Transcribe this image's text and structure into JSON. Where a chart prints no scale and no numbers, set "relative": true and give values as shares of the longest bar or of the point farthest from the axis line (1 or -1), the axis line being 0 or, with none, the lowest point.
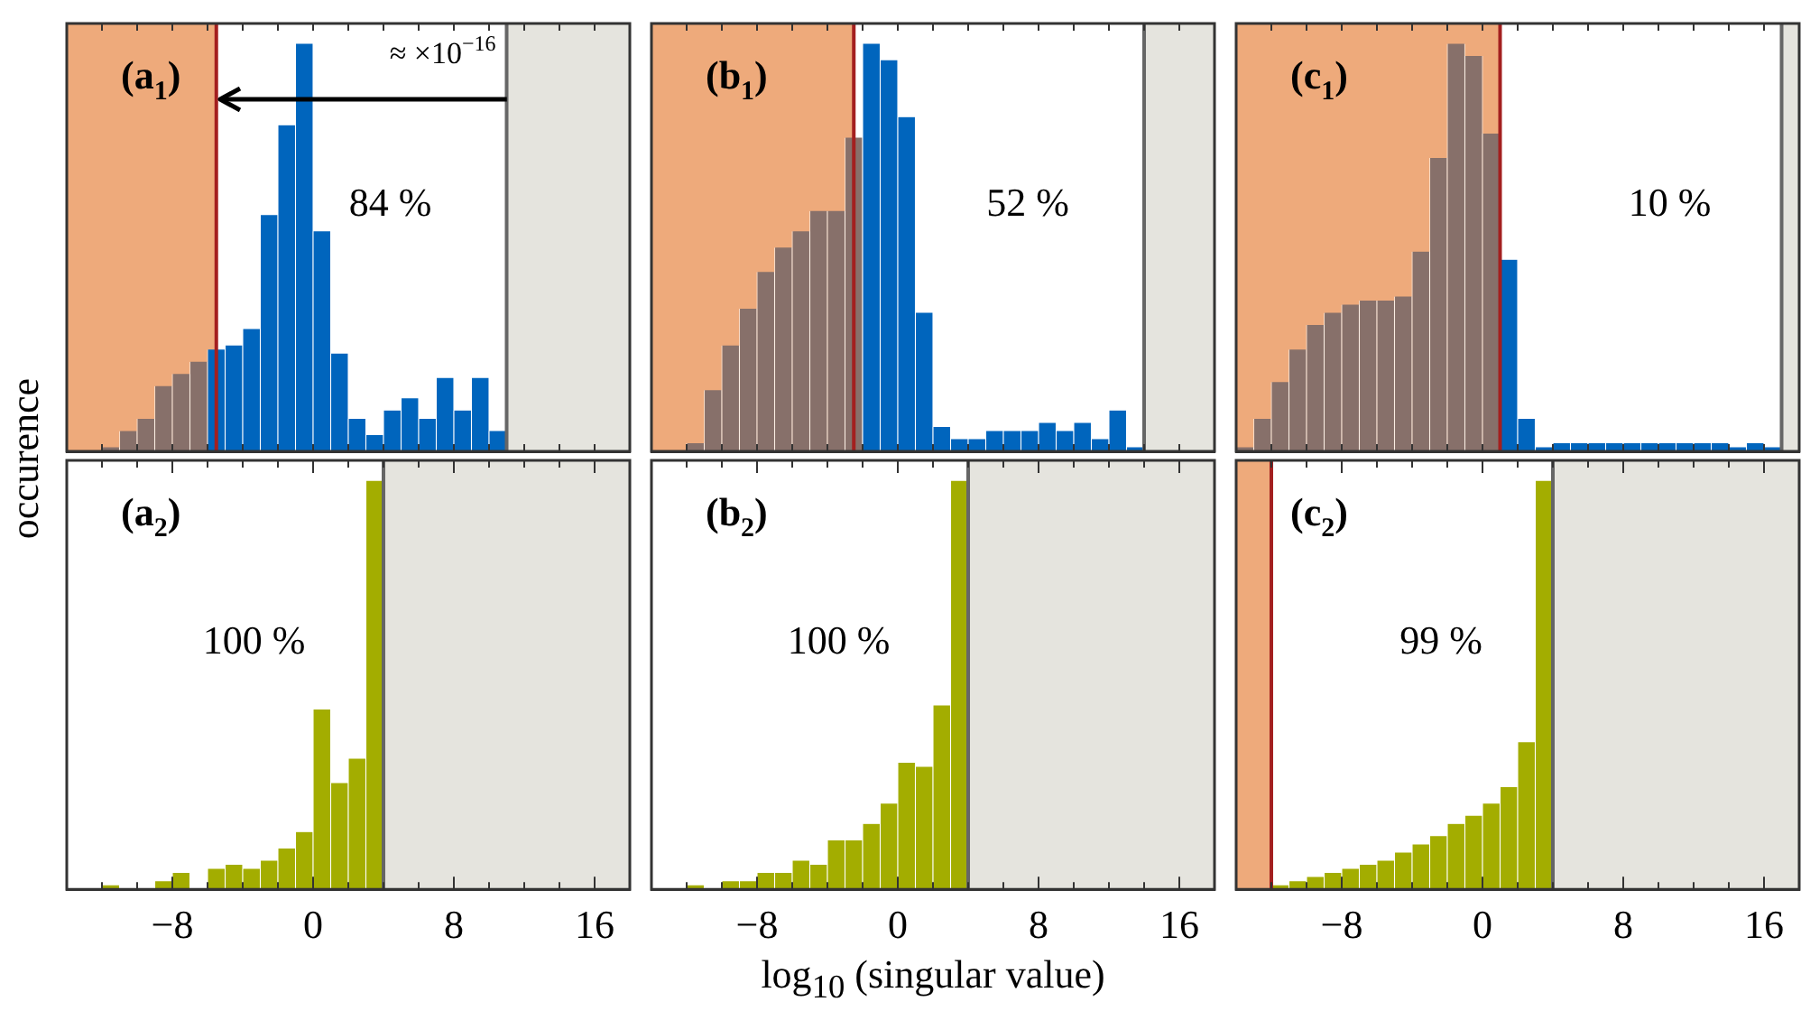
{
  "chart_data": [
    {
      "type": "bar",
      "title": "(a$_{1}$)",
      "ylabel": "occurence",
      "relative": true,
      "tick_labels": false,
      "xlim": [
        -14,
        18
      ],
      "xticks": [
        {
          "value": -12,
          "label": null
        },
        {
          "value": -10,
          "label": null
        },
        {
          "value": -8,
          "label": null
        },
        {
          "value": -6,
          "label": null
        },
        {
          "value": -4,
          "label": null
        },
        {
          "value": -2,
          "label": null
        },
        {
          "value": 0,
          "label": null
        },
        {
          "value": 2,
          "label": null
        },
        {
          "value": 4,
          "label": null
        },
        {
          "value": 6,
          "label": null
        },
        {
          "value": 8,
          "label": null
        },
        {
          "value": 10,
          "label": null
        },
        {
          "value": 12,
          "label": null
        },
        {
          "value": 14,
          "label": null
        },
        {
          "value": 16,
          "label": null
        }
      ],
      "x": [
        -11.5,
        -10.5,
        -9.5,
        -8.5,
        -7.5,
        -6.5,
        -5.5,
        -4.5,
        -3.5,
        -2.5,
        -1.5,
        -0.5,
        0.5,
        1.5,
        2.5,
        3.5,
        4.5,
        5.5,
        6.5,
        7.5,
        8.5,
        9.5,
        10.5
      ],
      "values": [
        0.01,
        0.05,
        0.08,
        0.16,
        0.19,
        0.22,
        0.25,
        0.26,
        0.3,
        0.58,
        0.8,
        1,
        0.54,
        0.24,
        0.08,
        0.04,
        0.1,
        0.13,
        0.08,
        0.18,
        0.1,
        0.18,
        0.05
      ],
      "colors": [
        "#87706a",
        "#87706a",
        "#87706a",
        "#87706a",
        "#87706a",
        "#87706a",
        "#0065bd",
        "#0065bd",
        "#0065bd",
        "#0065bd",
        "#0065bd",
        "#0065bd",
        "#0065bd",
        "#0065bd",
        "#0065bd",
        "#0065bd",
        "#0065bd",
        "#0065bd",
        "#0065bd",
        "#0065bd",
        "#0065bd",
        "#0065bd",
        "#0065bd"
      ],
      "bands": [
        {
          "axis": "x",
          "from": -14,
          "to": -5.5,
          "color": "#eeaa7b"
        },
        {
          "axis": "x",
          "from": 11,
          "to": 18,
          "color": "#e5e4de"
        }
      ],
      "ref_lines": [
        {
          "axis": "x",
          "value": -5.5,
          "color": "#a31f1f"
        },
        {
          "axis": "x",
          "value": 11,
          "color": "#666666"
        }
      ],
      "annotations": [
        "≈ ×10$^{−16}$",
        "84 %"
      ]
    },
    {
      "type": "bar",
      "title": "(b$_{1}$)",
      "relative": true,
      "tick_labels": false,
      "xlim": [
        -14,
        18
      ],
      "xticks": [
        {
          "value": -12,
          "label": null
        },
        {
          "value": -10,
          "label": null
        },
        {
          "value": -8,
          "label": null
        },
        {
          "value": -6,
          "label": null
        },
        {
          "value": -4,
          "label": null
        },
        {
          "value": -2,
          "label": null
        },
        {
          "value": 0,
          "label": null
        },
        {
          "value": 2,
          "label": null
        },
        {
          "value": 4,
          "label": null
        },
        {
          "value": 6,
          "label": null
        },
        {
          "value": 8,
          "label": null
        },
        {
          "value": 10,
          "label": null
        },
        {
          "value": 12,
          "label": null
        },
        {
          "value": 14,
          "label": null
        },
        {
          "value": 16,
          "label": null
        }
      ],
      "x": [
        -11.5,
        -10.5,
        -9.5,
        -8.5,
        -7.5,
        -6.5,
        -5.5,
        -4.5,
        -3.5,
        -2.5,
        -1.5,
        -0.5,
        0.5,
        1.5,
        2.5,
        3.5,
        4.5,
        5.5,
        6.5,
        7.5,
        8.5,
        9.5,
        10.5,
        11.5,
        12.5,
        13.5
      ],
      "values": [
        0.02,
        0.15,
        0.26,
        0.35,
        0.44,
        0.5,
        0.54,
        0.59,
        0.59,
        0.77,
        1,
        0.96,
        0.82,
        0.34,
        0.06,
        0.03,
        0.03,
        0.05,
        0.05,
        0.05,
        0.07,
        0.05,
        0.07,
        0.03,
        0.1,
        0.01
      ],
      "colors": [
        "#87706a",
        "#87706a",
        "#87706a",
        "#87706a",
        "#87706a",
        "#87706a",
        "#87706a",
        "#87706a",
        "#87706a",
        "#87706a",
        "#0065bd",
        "#0065bd",
        "#0065bd",
        "#0065bd",
        "#0065bd",
        "#0065bd",
        "#0065bd",
        "#0065bd",
        "#0065bd",
        "#0065bd",
        "#0065bd",
        "#0065bd",
        "#0065bd",
        "#0065bd",
        "#0065bd",
        "#0065bd"
      ],
      "bands": [
        {
          "axis": "x",
          "from": -14,
          "to": -2.5,
          "color": "#eeaa7b"
        },
        {
          "axis": "x",
          "from": 14,
          "to": 18,
          "color": "#e5e4de"
        }
      ],
      "ref_lines": [
        {
          "axis": "x",
          "value": -2.5,
          "color": "#a31f1f"
        },
        {
          "axis": "x",
          "value": 14,
          "color": "#666666"
        }
      ],
      "annotations": [
        "52 %"
      ]
    },
    {
      "type": "bar",
      "title": "(c$_{1}$)",
      "relative": true,
      "tick_labels": false,
      "xlim": [
        -14,
        18
      ],
      "xticks": [
        {
          "value": -12,
          "label": null
        },
        {
          "value": -10,
          "label": null
        },
        {
          "value": -8,
          "label": null
        },
        {
          "value": -6,
          "label": null
        },
        {
          "value": -4,
          "label": null
        },
        {
          "value": -2,
          "label": null
        },
        {
          "value": 0,
          "label": null
        },
        {
          "value": 2,
          "label": null
        },
        {
          "value": 4,
          "label": null
        },
        {
          "value": 6,
          "label": null
        },
        {
          "value": 8,
          "label": null
        },
        {
          "value": 10,
          "label": null
        },
        {
          "value": 12,
          "label": null
        },
        {
          "value": 14,
          "label": null
        },
        {
          "value": 16,
          "label": null
        }
      ],
      "x": [
        -13.5,
        -12.5,
        -11.5,
        -10.5,
        -9.5,
        -8.5,
        -7.5,
        -6.5,
        -5.5,
        -4.5,
        -3.5,
        -2.5,
        -1.5,
        -0.5,
        0.5,
        1.5,
        2.5,
        3.5,
        4.5,
        5.5,
        6.5,
        7.5,
        8.5,
        9.5,
        10.5,
        11.5,
        12.5,
        13.5,
        14.5,
        15.5,
        16.5
      ],
      "values": [
        0.01,
        0.08,
        0.17,
        0.25,
        0.31,
        0.34,
        0.36,
        0.37,
        0.37,
        0.38,
        0.49,
        0.72,
        1,
        0.97,
        0.78,
        0.47,
        0.08,
        0.01,
        0.02,
        0.02,
        0.02,
        0.02,
        0.02,
        0.02,
        0.02,
        0.02,
        0.02,
        0.02,
        0.01,
        0.02,
        0.01
      ],
      "colors": [
        "#87706a",
        "#87706a",
        "#87706a",
        "#87706a",
        "#87706a",
        "#87706a",
        "#87706a",
        "#87706a",
        "#87706a",
        "#87706a",
        "#87706a",
        "#87706a",
        "#87706a",
        "#87706a",
        "#87706a",
        "#0065bd",
        "#0065bd",
        "#0065bd",
        "#0065bd",
        "#0065bd",
        "#0065bd",
        "#0065bd",
        "#0065bd",
        "#0065bd",
        "#0065bd",
        "#0065bd",
        "#0065bd",
        "#0065bd",
        "#0065bd",
        "#0065bd",
        "#0065bd"
      ],
      "bands": [
        {
          "axis": "x",
          "from": -14,
          "to": 1,
          "color": "#eeaa7b"
        },
        {
          "axis": "x",
          "from": 17,
          "to": 18,
          "color": "#e5e4de"
        }
      ],
      "ref_lines": [
        {
          "axis": "x",
          "value": 1,
          "color": "#a31f1f"
        },
        {
          "axis": "x",
          "value": 17,
          "color": "#666666"
        }
      ],
      "annotations": [
        "10 %"
      ]
    },
    {
      "type": "bar",
      "title": "(a$_{2}$)",
      "relative": true,
      "tick_labels": "x",
      "xlim": [
        -14,
        18
      ],
      "xticks": [
        {
          "value": -12,
          "label": null
        },
        {
          "value": -10,
          "label": null
        },
        {
          "value": -8,
          "label": "−8"
        },
        {
          "value": -6,
          "label": null
        },
        {
          "value": -4,
          "label": null
        },
        {
          "value": -2,
          "label": null
        },
        {
          "value": 0,
          "label": "0"
        },
        {
          "value": 2,
          "label": null
        },
        {
          "value": 4,
          "label": null
        },
        {
          "value": 6,
          "label": null
        },
        {
          "value": 8,
          "label": "8"
        },
        {
          "value": 10,
          "label": null
        },
        {
          "value": 12,
          "label": null
        },
        {
          "value": 14,
          "label": null
        },
        {
          "value": 16,
          "label": "16"
        }
      ],
      "x": [
        -11.5,
        -10.5,
        -9.5,
        -8.5,
        -7.5,
        -6.5,
        -5.5,
        -4.5,
        -3.5,
        -2.5,
        -1.5,
        -0.5,
        0.5,
        1.5,
        2.5,
        3.5
      ],
      "values": [
        0.01,
        0,
        0,
        0.02,
        0.04,
        0,
        0.05,
        0.06,
        0.05,
        0.07,
        0.1,
        0.14,
        0.44,
        0.26,
        0.32,
        1
      ],
      "color": "#a3ad00",
      "bands": [
        {
          "axis": "x",
          "from": 4,
          "to": 18,
          "color": "#e5e4de"
        }
      ],
      "ref_lines": [
        {
          "axis": "x",
          "value": 4,
          "color": "#666666"
        }
      ],
      "annotations": [
        "100 %"
      ]
    },
    {
      "type": "bar",
      "title": "(b$_{2}$)",
      "xlabel": "log$_{10}$ (singular value)",
      "relative": true,
      "tick_labels": "x",
      "xlim": [
        -14,
        18
      ],
      "xticks": [
        {
          "value": -12,
          "label": null
        },
        {
          "value": -10,
          "label": null
        },
        {
          "value": -8,
          "label": "−8"
        },
        {
          "value": -6,
          "label": null
        },
        {
          "value": -4,
          "label": null
        },
        {
          "value": -2,
          "label": null
        },
        {
          "value": 0,
          "label": "0"
        },
        {
          "value": 2,
          "label": null
        },
        {
          "value": 4,
          "label": null
        },
        {
          "value": 6,
          "label": null
        },
        {
          "value": 8,
          "label": "8"
        },
        {
          "value": 10,
          "label": null
        },
        {
          "value": 12,
          "label": null
        },
        {
          "value": 14,
          "label": null
        },
        {
          "value": 16,
          "label": "16"
        }
      ],
      "x": [
        -11.5,
        -10.5,
        -9.5,
        -8.5,
        -7.5,
        -6.5,
        -5.5,
        -4.5,
        -3.5,
        -2.5,
        -1.5,
        -0.5,
        0.5,
        1.5,
        2.5,
        3.5
      ],
      "values": [
        0.01,
        0,
        0.02,
        0.02,
        0.04,
        0.04,
        0.07,
        0.06,
        0.12,
        0.12,
        0.16,
        0.21,
        0.31,
        0.3,
        0.45,
        1
      ],
      "color": "#a3ad00",
      "bands": [
        {
          "axis": "x",
          "from": 4,
          "to": 18,
          "color": "#e5e4de"
        }
      ],
      "ref_lines": [
        {
          "axis": "x",
          "value": 4,
          "color": "#666666"
        }
      ],
      "annotations": [
        "100 %"
      ]
    },
    {
      "type": "bar",
      "title": "(c$_{2}$)",
      "relative": true,
      "tick_labels": "x",
      "xlim": [
        -14,
        18
      ],
      "xticks": [
        {
          "value": -12,
          "label": null
        },
        {
          "value": -10,
          "label": null
        },
        {
          "value": -8,
          "label": "−8"
        },
        {
          "value": -6,
          "label": null
        },
        {
          "value": -4,
          "label": null
        },
        {
          "value": -2,
          "label": null
        },
        {
          "value": 0,
          "label": "0"
        },
        {
          "value": 2,
          "label": null
        },
        {
          "value": 4,
          "label": null
        },
        {
          "value": 6,
          "label": null
        },
        {
          "value": 8,
          "label": "8"
        },
        {
          "value": 10,
          "label": null
        },
        {
          "value": 12,
          "label": null
        },
        {
          "value": 14,
          "label": null
        },
        {
          "value": 16,
          "label": "16"
        }
      ],
      "x": [
        -11.5,
        -10.5,
        -9.5,
        -8.5,
        -7.5,
        -6.5,
        -5.5,
        -4.5,
        -3.5,
        -2.5,
        -1.5,
        -0.5,
        0.5,
        1.5,
        2.5,
        3.5
      ],
      "values": [
        0.01,
        0.02,
        0.03,
        0.04,
        0.05,
        0.06,
        0.07,
        0.09,
        0.11,
        0.13,
        0.16,
        0.18,
        0.21,
        0.25,
        0.36,
        1
      ],
      "color": "#a3ad00",
      "bands": [
        {
          "axis": "x",
          "from": -14,
          "to": -12,
          "color": "#eeaa7b"
        },
        {
          "axis": "x",
          "from": 4,
          "to": 18,
          "color": "#e5e4de"
        }
      ],
      "ref_lines": [
        {
          "axis": "x",
          "value": -12,
          "color": "#a31f1f"
        },
        {
          "axis": "x",
          "value": 4,
          "color": "#666666"
        }
      ],
      "annotations": [
        "99 %"
      ]
    }
  ]
}
